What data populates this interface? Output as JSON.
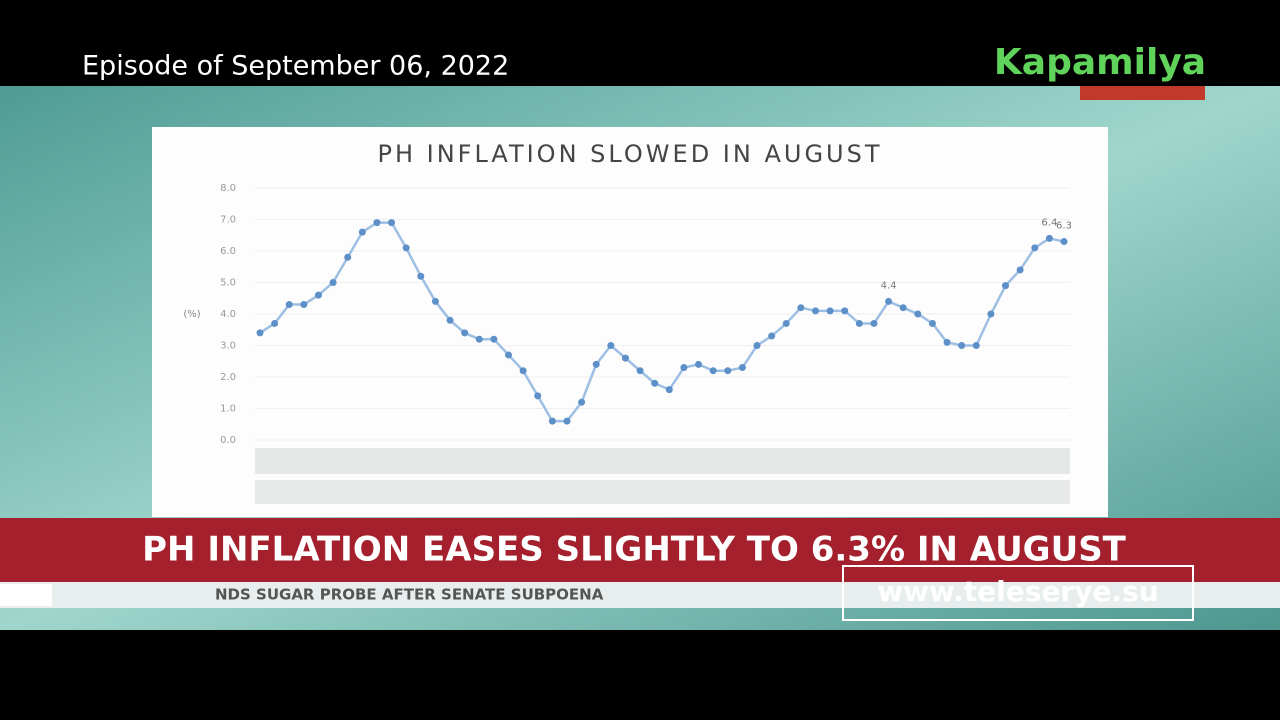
{
  "broadcast": {
    "episode": "Episode of September 06, 2022",
    "logo": "Kapamilya",
    "headline": "PH INFLATION EASES SLIGHTLY TO 6.3% IN AUGUST",
    "ticker": "NDS SUGAR PROBE AFTER SENATE SUBPOENA",
    "watermark": "www.teleserye.su"
  },
  "chart_data": {
    "type": "line",
    "title": "PH INFLATION SLOWED IN AUGUST",
    "ylabel": "(%)",
    "color": "#9dbfe3",
    "grid": true,
    "categories": [
      null,
      null,
      null,
      null,
      null,
      null,
      null,
      null,
      null,
      null,
      null,
      null,
      null,
      null,
      null,
      null,
      null,
      null,
      null,
      null,
      null,
      null,
      null,
      null,
      null,
      null,
      null,
      null,
      null,
      null,
      null,
      null,
      null,
      null,
      null,
      null,
      null,
      null,
      null,
      null,
      null,
      null,
      null,
      null,
      null,
      null,
      null,
      null,
      null,
      null,
      null,
      null,
      null,
      null,
      null,
      null
    ],
    "values": [
      3.4,
      3.7,
      4.3,
      4.3,
      4.6,
      5.0,
      5.8,
      6.6,
      6.9,
      6.9,
      6.1,
      5.2,
      4.4,
      3.8,
      3.4,
      3.2,
      3.2,
      2.7,
      2.2,
      1.4,
      0.6,
      0.6,
      1.2,
      2.4,
      3.0,
      2.6,
      2.2,
      1.8,
      1.6,
      2.3,
      2.4,
      2.2,
      2.2,
      2.3,
      3.0,
      3.3,
      3.7,
      4.2,
      4.1,
      4.1,
      4.1,
      3.7,
      3.7,
      4.4,
      4.2,
      4.0,
      3.7,
      3.1,
      3.0,
      3.0,
      4.0,
      4.9,
      5.4,
      6.1,
      6.4,
      6.3
    ],
    "value_labels": [
      null,
      null,
      null,
      null,
      null,
      null,
      null,
      null,
      null,
      null,
      null,
      null,
      null,
      null,
      null,
      null,
      null,
      null,
      null,
      null,
      null,
      null,
      null,
      null,
      null,
      null,
      null,
      null,
      null,
      null,
      null,
      null,
      null,
      null,
      null,
      null,
      null,
      null,
      null,
      null,
      null,
      null,
      null,
      "4.4",
      null,
      null,
      null,
      null,
      null,
      null,
      null,
      null,
      null,
      null,
      "6.4",
      "6.3"
    ],
    "ylim": [
      0,
      8
    ],
    "yticks": [
      {
        "value": 0,
        "label": "0.0"
      },
      {
        "value": 1,
        "label": "1.0"
      },
      {
        "value": 2,
        "label": "2.0"
      },
      {
        "value": 3,
        "label": "3.0"
      },
      {
        "value": 4,
        "label": "4.0"
      },
      {
        "value": 5,
        "label": "5.0"
      },
      {
        "value": 6,
        "label": "6.0"
      },
      {
        "value": 7,
        "label": "7.0"
      },
      {
        "value": 8,
        "label": "8.0"
      }
    ]
  }
}
